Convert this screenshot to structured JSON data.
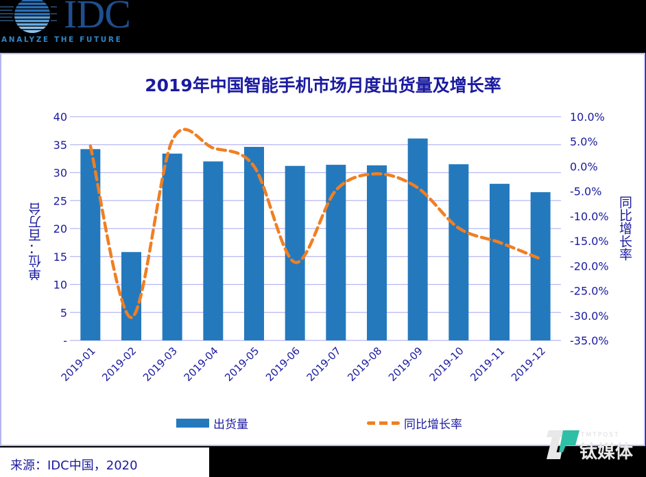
{
  "logo": {
    "brand": "IDC",
    "tagline": "ANALYZE THE FUTURE"
  },
  "title": "2019年中国智能手机市场月度出货量及增长率",
  "source": "来源：IDC中国，2020",
  "watermark": {
    "latin": "TMTPOST",
    "chinese": "钛媒体"
  },
  "colors": {
    "bar": "#2479bd",
    "line": "#f07f22",
    "text": "#1a1aa0",
    "grid": "#b6b6f2"
  },
  "chart_data": {
    "type": "bar",
    "title": "2019年中国智能手机市场月度出货量及增长率",
    "categories": [
      "2019-01",
      "2019-02",
      "2019-03",
      "2019-04",
      "2019-05",
      "2019-06",
      "2019-07",
      "2019-08",
      "2019-09",
      "2019-10",
      "2019-11",
      "2019-12"
    ],
    "series": [
      {
        "name": "出货量",
        "type": "bar",
        "axis": "left",
        "values": [
          34.2,
          15.8,
          33.4,
          32.0,
          34.6,
          31.2,
          31.4,
          31.3,
          36.1,
          31.5,
          28.0,
          26.5
        ]
      },
      {
        "name": "同比增长率",
        "type": "line",
        "style": "dashed",
        "axis": "right",
        "values": [
          4.1,
          -30.4,
          5.2,
          3.7,
          0.0,
          -19.3,
          -4.8,
          -1.5,
          -4.3,
          -12.4,
          -15.3,
          -18.6
        ]
      }
    ],
    "ylabel": "单位：百万台",
    "y2label": "同比增长率",
    "ylim": [
      0,
      40
    ],
    "y2lim": [
      -35,
      10
    ],
    "yticks": [
      "40",
      "35",
      "30",
      "25",
      "20",
      "15",
      "10",
      "5",
      "-"
    ],
    "y2ticks": [
      "10.0%",
      "5.0%",
      "0.0%",
      "-5.0%",
      "-10.0%",
      "-15.0%",
      "-20.0%",
      "-25.0%",
      "-30.0%",
      "-35.0%"
    ],
    "grid": true,
    "legend": {
      "position": "bottom",
      "entries": [
        "出货量",
        "同比增长率"
      ]
    }
  }
}
